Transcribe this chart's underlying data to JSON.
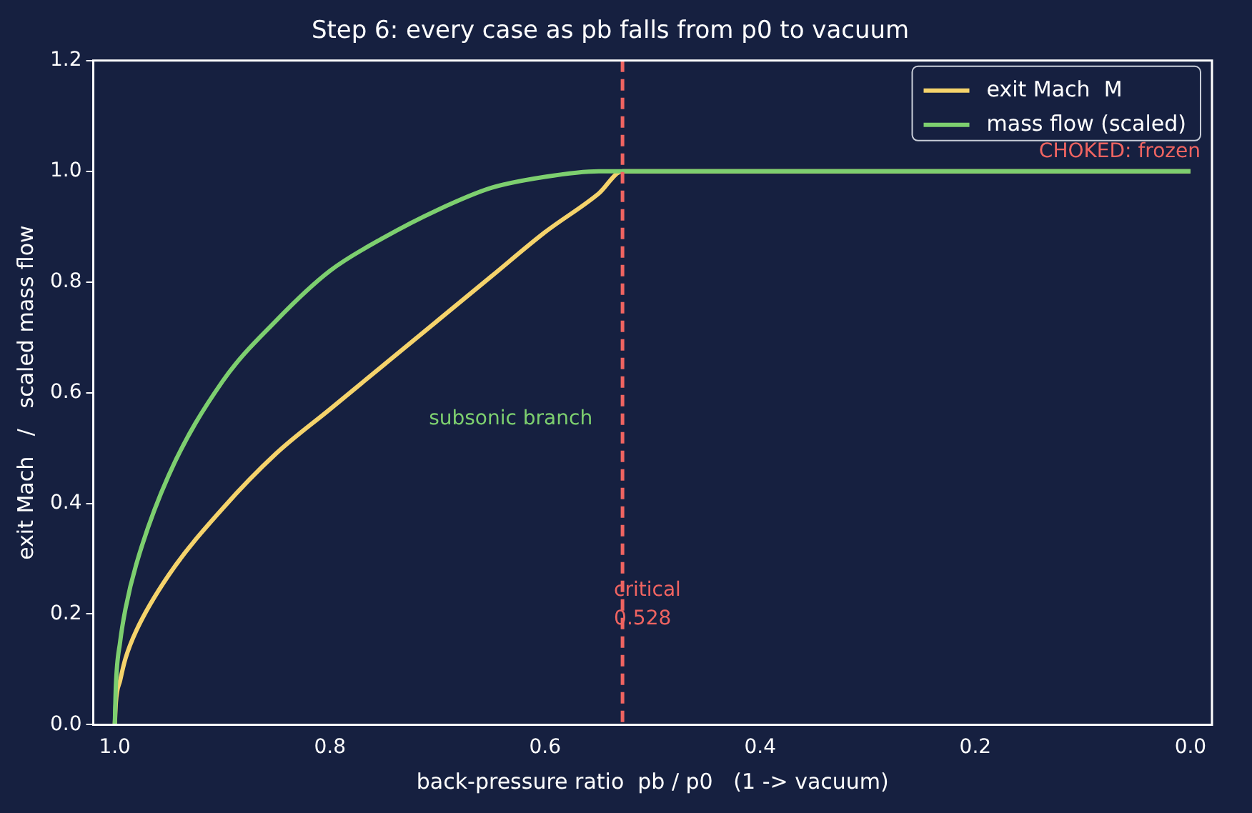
{
  "chart_data": {
    "type": "line",
    "title": "Step 6: every case as pb falls from p0 to vacuum",
    "xlabel": "back-pressure ratio  pb / p0   (1 -> vacuum)",
    "ylabel": "exit Mach   /   scaled mass flow",
    "x": [
      1,
      0.999,
      0.995,
      0.99,
      0.98,
      0.95,
      0.9,
      0.85,
      0.8,
      0.75,
      0.7,
      0.65,
      0.6,
      0.55,
      0.528,
      0
    ],
    "series": [
      {
        "name": "exit Mach  M",
        "color": "#f5d36b",
        "values": [
          0,
          0.04,
          0.08,
          0.12,
          0.17,
          0.27,
          0.39,
          0.49,
          0.57,
          0.65,
          0.73,
          0.81,
          0.89,
          0.96,
          1,
          1
        ]
      },
      {
        "name": "mass flow (scaled)",
        "color": "#7dcf6f",
        "values": [
          0,
          0.07,
          0.15,
          0.21,
          0.29,
          0.45,
          0.62,
          0.73,
          0.82,
          0.88,
          0.93,
          0.97,
          0.99,
          1,
          1,
          1
        ]
      }
    ],
    "xlim": [
      1.02,
      -0.02
    ],
    "xticks": [
      {
        "value": 1,
        "label": "1.0"
      },
      0.8,
      0.6,
      0.4,
      0.2,
      {
        "value": 0,
        "label": "0.0"
      }
    ],
    "ylim": [
      0,
      1.2
    ],
    "yticks": [
      {
        "value": 0,
        "label": "0.0"
      },
      0.2,
      0.4,
      0.6,
      0.8,
      {
        "value": 1,
        "label": "1.0"
      },
      1.2
    ],
    "ref_lines": [
      {
        "axis": "x",
        "value": 0.528,
        "label": "critical\n0.528",
        "color": "#ef6461",
        "line_style": "dashed"
      }
    ],
    "annotations": [
      "subsonic branch",
      "CHOKED: frozen"
    ],
    "grid": false,
    "legend": "top right",
    "line_style": "solid",
    "marker": "none"
  }
}
